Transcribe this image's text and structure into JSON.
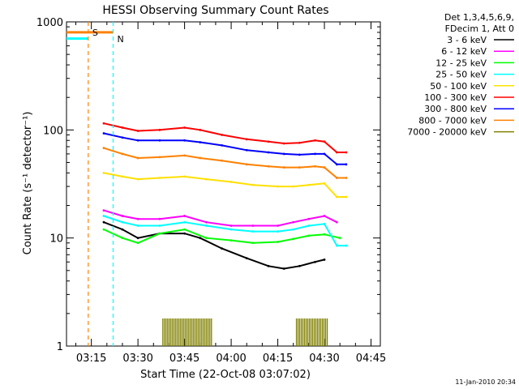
{
  "chart_data": {
    "type": "line",
    "title": "HESSI Observing Summary Count Rates",
    "xlabel": "Start Time (22-Oct-08 03:07:02)",
    "ylabel": "Count Rate (s⁻¹ detector⁻¹)",
    "yscale": "log",
    "ylim": [
      1,
      1000
    ],
    "xlim": [
      "03:07",
      "04:48"
    ],
    "x_tick_labels": [
      "03:15",
      "03:30",
      "03:45",
      "04:00",
      "04:15",
      "04:30",
      "04:45"
    ],
    "y_tick_labels": [
      "1",
      "10",
      "100",
      "1000"
    ],
    "legend": {
      "position": "right",
      "header": [
        "Det 1,3,4,5,6,9,",
        "FDecim 1, Att 0"
      ]
    },
    "markers": [
      {
        "label": "S",
        "time": "03:14",
        "color": "#ff8000",
        "style": "dashed"
      },
      {
        "label": "N",
        "time": "03:22",
        "color": "#00ffff",
        "style": "dashed"
      }
    ],
    "series": [
      {
        "name": "3 - 6 keV",
        "color": "#000000",
        "x": [
          "03:19",
          "03:25",
          "03:30",
          "03:37",
          "03:45",
          "03:50",
          "03:57",
          "04:05",
          "04:12",
          "04:17",
          "04:22",
          "04:27",
          "04:30"
        ],
        "y": [
          14,
          12,
          10,
          11,
          11,
          10,
          8,
          6.5,
          5.5,
          5.2,
          5.5,
          6,
          6.3
        ]
      },
      {
        "name": "6 - 12 keV",
        "color": "#ff00ff",
        "x": [
          "03:19",
          "03:25",
          "03:30",
          "03:37",
          "03:45",
          "03:52",
          "04:00",
          "04:07",
          "04:15",
          "04:20",
          "04:25",
          "04:30",
          "04:34"
        ],
        "y": [
          18,
          16,
          15,
          15,
          16,
          14,
          13,
          13,
          13,
          14,
          15,
          16,
          14
        ]
      },
      {
        "name": "12 - 25 keV",
        "color": "#00ff00",
        "x": [
          "03:19",
          "03:25",
          "03:30",
          "03:37",
          "03:45",
          "03:52",
          "04:00",
          "04:07",
          "04:15",
          "04:20",
          "04:25",
          "04:30",
          "04:35"
        ],
        "y": [
          12,
          10,
          9,
          11,
          12,
          10,
          9.5,
          9,
          9.2,
          9.8,
          10.5,
          10.8,
          10
        ]
      },
      {
        "name": "25 - 50 keV",
        "color": "#00ffff",
        "x": [
          "03:19",
          "03:25",
          "03:30",
          "03:37",
          "03:45",
          "03:52",
          "04:00",
          "04:07",
          "04:15",
          "04:20",
          "04:25",
          "04:30",
          "04:34",
          "04:37"
        ],
        "y": [
          16,
          14,
          13,
          13,
          14,
          13,
          12,
          11.5,
          11.5,
          12,
          13,
          13.5,
          8.5,
          8.5
        ]
      },
      {
        "name": "50 - 100 keV",
        "color": "#ffe000",
        "x": [
          "03:19",
          "03:25",
          "03:30",
          "03:37",
          "03:45",
          "03:52",
          "04:00",
          "04:07",
          "04:15",
          "04:20",
          "04:25",
          "04:30",
          "04:34",
          "04:37"
        ],
        "y": [
          40,
          37,
          35,
          36,
          37,
          35,
          33,
          31,
          30,
          30,
          31,
          32,
          24,
          24
        ]
      },
      {
        "name": "100 - 300 keV",
        "color": "#ff0000",
        "x": [
          "03:19",
          "03:25",
          "03:30",
          "03:37",
          "03:45",
          "03:50",
          "03:57",
          "04:05",
          "04:12",
          "04:17",
          "04:22",
          "04:27",
          "04:30",
          "04:34",
          "04:37"
        ],
        "y": [
          115,
          105,
          98,
          100,
          105,
          100,
          90,
          82,
          78,
          75,
          76,
          80,
          78,
          62,
          62
        ]
      },
      {
        "name": "300 - 800 keV",
        "color": "#0000ff",
        "x": [
          "03:19",
          "03:25",
          "03:30",
          "03:37",
          "03:45",
          "03:50",
          "03:57",
          "04:05",
          "04:12",
          "04:17",
          "04:22",
          "04:27",
          "04:30",
          "04:34",
          "04:37"
        ],
        "y": [
          93,
          85,
          80,
          80,
          80,
          77,
          72,
          65,
          62,
          60,
          59,
          60,
          60,
          48,
          48
        ]
      },
      {
        "name": "800 - 7000 keV",
        "color": "#ff8000",
        "x": [
          "03:19",
          "03:25",
          "03:30",
          "03:37",
          "03:45",
          "03:50",
          "03:57",
          "04:05",
          "04:12",
          "04:17",
          "04:22",
          "04:27",
          "04:30",
          "04:34",
          "04:37"
        ],
        "y": [
          68,
          60,
          55,
          56,
          58,
          55,
          52,
          48,
          46,
          45,
          45,
          46,
          45,
          36,
          36
        ]
      },
      {
        "name": "7000 - 20000 keV",
        "color": "#808000",
        "x": [
          "03:38",
          "03:54",
          "04:21",
          "04:31"
        ],
        "y": [
          1.8,
          1.8,
          1.8,
          1.8
        ]
      }
    ],
    "attenuator_lines": [
      {
        "time": "03:08",
        "y": 700,
        "color": "#00ffff"
      },
      {
        "time": "03:14",
        "y": 800,
        "color": "#ff8000"
      }
    ],
    "footer_date": "11-Jan-2010 20:34"
  }
}
